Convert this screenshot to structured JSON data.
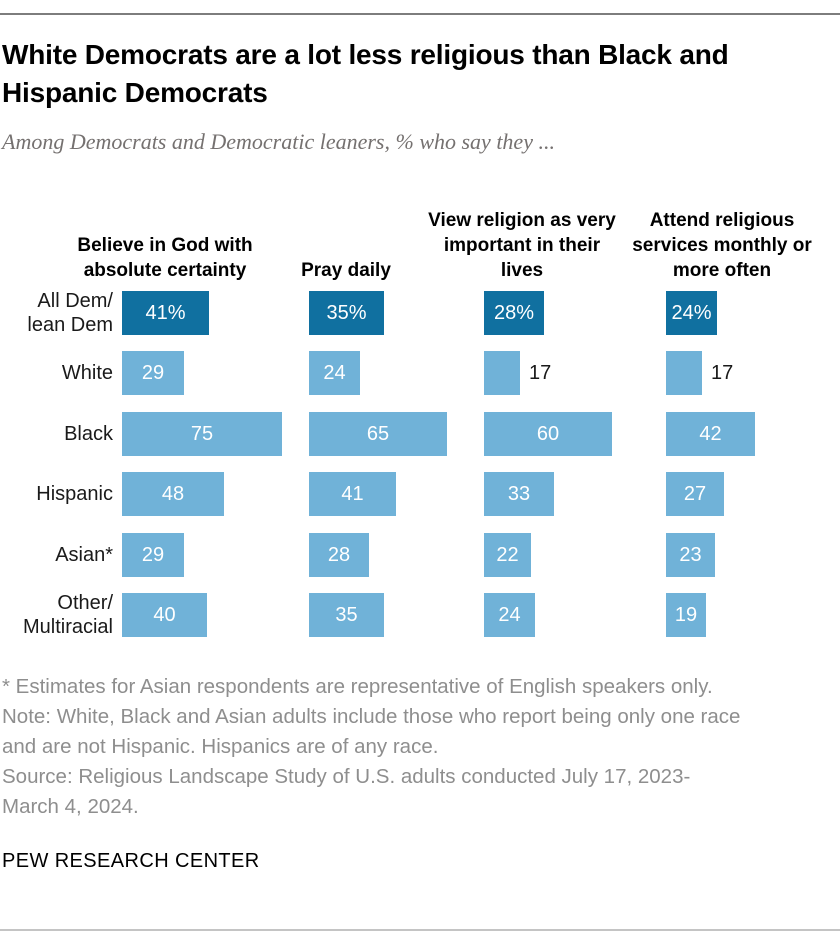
{
  "header": {
    "title": "White Democrats are a lot less religious than Black and Hispanic Democrats",
    "subtitle": "Among Democrats and Democratic leaners, % who say they ..."
  },
  "chart_data": {
    "type": "bar",
    "orientation": "horizontal",
    "unit": "%",
    "colors": {
      "highlight_bar": "#1070A0",
      "default_bar": "#70B2D8",
      "value_inside": "#FFFFFF",
      "value_outside": "#1A1A1A"
    },
    "columns": [
      "Believe in God with absolute certainty",
      "Pray daily",
      "View religion as very important in their lives",
      "Attend religious services monthly or more often"
    ],
    "rows": [
      {
        "label": "All Dem/\nlean Dem",
        "highlight": true,
        "values": [
          41,
          35,
          28,
          24
        ],
        "display": [
          "41%",
          "35%",
          "28%",
          "24%"
        ]
      },
      {
        "label": "White",
        "highlight": false,
        "values": [
          29,
          24,
          17,
          17
        ],
        "display": [
          "29",
          "24",
          "17",
          "17"
        ]
      },
      {
        "label": "Black",
        "highlight": false,
        "values": [
          75,
          65,
          60,
          42
        ],
        "display": [
          "75",
          "65",
          "60",
          "42"
        ]
      },
      {
        "label": "Hispanic",
        "highlight": false,
        "values": [
          48,
          41,
          33,
          27
        ],
        "display": [
          "48",
          "41",
          "33",
          "27"
        ]
      },
      {
        "label": "Asian*",
        "highlight": false,
        "values": [
          29,
          28,
          22,
          23
        ],
        "display": [
          "29",
          "28",
          "22",
          "23"
        ]
      },
      {
        "label": "Other/\nMultiracial",
        "highlight": false,
        "values": [
          40,
          35,
          24,
          19
        ],
        "display": [
          "40",
          "35",
          "24",
          "19"
        ]
      }
    ]
  },
  "footer": {
    "notes": [
      "* Estimates for Asian respondents are representative of English speakers only.",
      "Note: White, Black and Asian adults include those who report being only one race",
      "and are not Hispanic. Hispanics are of any race.",
      "Source: Religious Landscape Study of U.S. adults conducted July 17, 2023-",
      "March 4, 2024."
    ],
    "brand": "PEW RESEARCH CENTER"
  }
}
